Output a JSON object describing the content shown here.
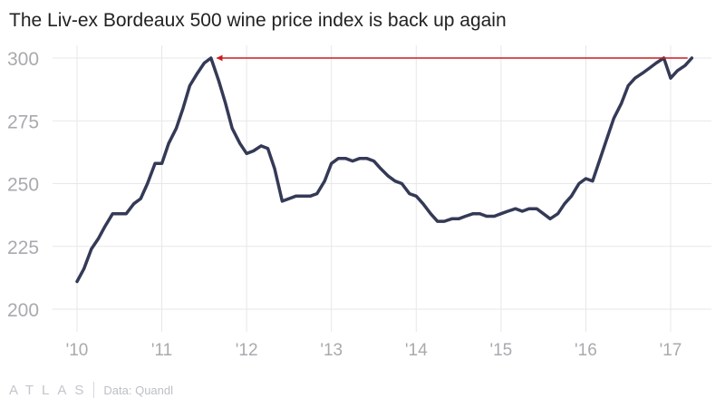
{
  "title": "The Liv-ex Bordeaux 500 wine price index is back up again",
  "footer": {
    "brand": "ATLAS",
    "source": "Data: Quandl"
  },
  "colors": {
    "line": "#343a56",
    "arrow": "#cc1b1b",
    "grid": "#e7e7ea",
    "tick_text": "#a9aaae"
  },
  "chart_data": {
    "type": "line",
    "title": "The Liv-ex Bordeaux 500 wine price index is back up again",
    "xlabel": "",
    "ylabel": "",
    "ylim": [
      200,
      300
    ],
    "yticks": [
      300,
      275,
      250,
      225,
      200
    ],
    "xlim": [
      2010,
      2017.35
    ],
    "xticks": [
      2010,
      2011,
      2012,
      2013,
      2014,
      2015,
      2016,
      2017
    ],
    "xtick_labels": [
      "'10",
      "'11",
      "'12",
      "'13",
      "'14",
      "'15",
      "'16",
      "'17"
    ],
    "grid": true,
    "legend": "none",
    "series": [
      {
        "x": [
          2010.0,
          2010.08,
          2010.17,
          2010.25,
          2010.33,
          2010.42,
          2010.5,
          2010.58,
          2010.67,
          2010.75,
          2010.83,
          2010.92,
          2011.0,
          2011.08,
          2011.17,
          2011.25,
          2011.33,
          2011.42,
          2011.5,
          2011.58,
          2011.67,
          2011.75,
          2011.83,
          2011.92,
          2012.0,
          2012.08,
          2012.17,
          2012.25,
          2012.33,
          2012.42,
          2012.5,
          2012.58,
          2012.67,
          2012.75,
          2012.83,
          2012.92,
          2013.0,
          2013.08,
          2013.17,
          2013.25,
          2013.33,
          2013.42,
          2013.5,
          2013.58,
          2013.67,
          2013.75,
          2013.83,
          2013.92,
          2014.0,
          2014.08,
          2014.17,
          2014.25,
          2014.33,
          2014.42,
          2014.5,
          2014.58,
          2014.67,
          2014.75,
          2014.83,
          2014.92,
          2015.0,
          2015.08,
          2015.17,
          2015.25,
          2015.33,
          2015.42,
          2015.5,
          2015.58,
          2015.67,
          2015.75,
          2015.83,
          2015.92,
          2016.0,
          2016.08,
          2016.17,
          2016.25,
          2016.33,
          2016.42,
          2016.5,
          2016.58,
          2016.67,
          2016.75,
          2016.83,
          2016.92,
          2017.0,
          2017.08,
          2017.17,
          2017.25
        ],
        "values": [
          211,
          216,
          224,
          228,
          233,
          238,
          238,
          238,
          242,
          244,
          250,
          258,
          258,
          266,
          272,
          280,
          289,
          294,
          298,
          300,
          291,
          282,
          272,
          266,
          262,
          263,
          265,
          264,
          256,
          243,
          244,
          245,
          245,
          245,
          246,
          251,
          258,
          260,
          260,
          259,
          260,
          260,
          259,
          256,
          253,
          251,
          250,
          246,
          245,
          242,
          238,
          235,
          235,
          236,
          236,
          237,
          238,
          238,
          237,
          237,
          238,
          239,
          240,
          239,
          240,
          240,
          238,
          236,
          238,
          242,
          245,
          250,
          252,
          251,
          260,
          268,
          276,
          282,
          289,
          292,
          294,
          296,
          298,
          300,
          292,
          295,
          297,
          300
        ]
      }
    ],
    "annotations": [
      {
        "type": "arrow",
        "from": [
          2017.2,
          300
        ],
        "to": [
          2011.65,
          300
        ]
      }
    ]
  }
}
